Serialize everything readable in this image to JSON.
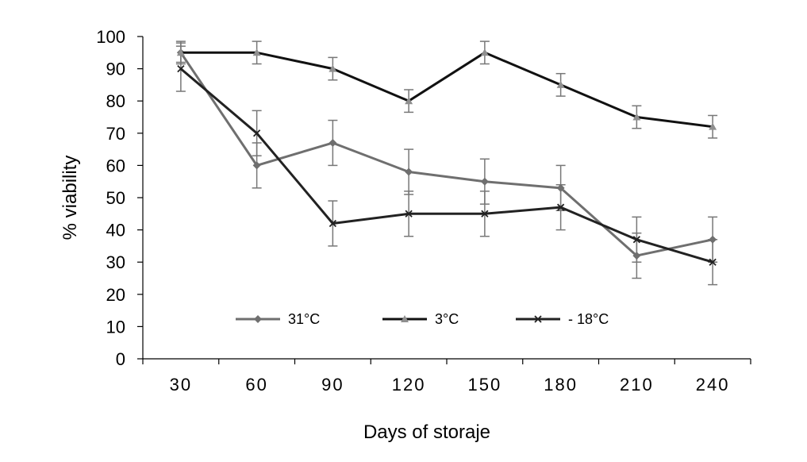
{
  "chart_data": {
    "type": "line",
    "title": "",
    "xlabel": "Days of storaje",
    "ylabel": "% viability",
    "categories": [
      "30",
      "60",
      "90",
      "120",
      "150",
      "180",
      "210",
      "240"
    ],
    "ylim": [
      0,
      100
    ],
    "yticks": [
      0,
      10,
      20,
      30,
      40,
      50,
      60,
      70,
      80,
      90,
      100
    ],
    "grid": false,
    "legend_position": "lower-center",
    "series": [
      {
        "name": "31°C",
        "marker": "diamond",
        "color": "#6f6f6f",
        "values": [
          95,
          60,
          67,
          58,
          55,
          53,
          32,
          37
        ],
        "errors": [
          3,
          7,
          7,
          7,
          7,
          7,
          7,
          7
        ]
      },
      {
        "name": "3°C",
        "marker": "triangle",
        "color": "#111111",
        "marker_color": "#8f8f8f",
        "values": [
          95,
          95,
          90,
          80,
          95,
          85,
          75,
          72
        ],
        "errors": [
          3.5,
          3.5,
          3.5,
          3.5,
          3.5,
          3.5,
          3.5,
          3.5
        ]
      },
      {
        "name": "- 18°C",
        "marker": "x",
        "color": "#222222",
        "values": [
          90,
          70,
          42,
          45,
          45,
          47,
          37,
          30
        ],
        "errors": [
          7,
          7,
          7,
          7,
          7,
          7,
          7,
          7
        ]
      }
    ]
  }
}
